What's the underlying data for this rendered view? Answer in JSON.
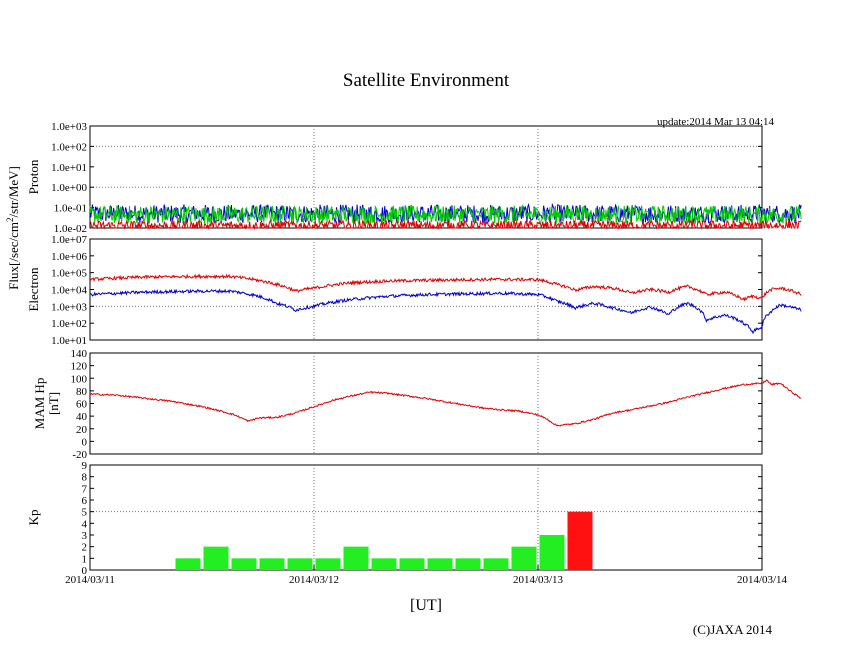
{
  "title": "Satellite Environment",
  "update": "update:2014 Mar 13 04:14",
  "copyright": "(C)JAXA 2014",
  "chart_data": {
    "type": "line",
    "x_axis": {
      "label": "[UT]",
      "range": [
        "2014/03/11 00:00",
        "2014/03/14 00:00"
      ],
      "ticks": [
        "2014/03/11",
        "2014/03/12",
        "2014/03/13",
        "2014/03/14"
      ],
      "vertical_grid": [
        "2014/03/12",
        "2014/03/13"
      ]
    },
    "shared_flux_label": {
      "prefix": "Flux[/sec/cm",
      "sup": "2",
      "suffix": "/str/MeV]"
    },
    "panels": [
      {
        "id": "proton",
        "ylabel": "Proton",
        "scale": "log",
        "ylim": [
          0.01,
          1000
        ],
        "ticks": [
          "1.0e-02",
          "1.0e-01",
          "1.0e+00",
          "1.0e+01",
          "1.0e+02",
          "1.0e+03"
        ],
        "grid_values": [
          1,
          100
        ],
        "series_colors": [
          "#e00000",
          "#00cc00",
          "#0000d0"
        ],
        "series": [
          {
            "color": "#0000d0",
            "t": [
              0,
              6,
              12,
              18,
              24,
              30,
              36,
              42,
              48,
              54,
              60,
              66,
              72,
              76.2
            ],
            "v": [
              0.05,
              0.05,
              0.05,
              0.05,
              0.05,
              0.05,
              0.05,
              0.05,
              0.05,
              0.05,
              0.05,
              0.05,
              0.05,
              0.05
            ]
          },
          {
            "color": "#00cc00",
            "t": [
              0,
              6,
              12,
              18,
              24,
              30,
              36,
              42,
              48,
              54,
              60,
              66,
              72,
              76.2
            ],
            "v": [
              0.045,
              0.045,
              0.045,
              0.045,
              0.045,
              0.045,
              0.045,
              0.045,
              0.045,
              0.045,
              0.045,
              0.045,
              0.045,
              0.045
            ]
          },
          {
            "color": "#e00000",
            "t": [
              0,
              6,
              12,
              18,
              24,
              30,
              36,
              42,
              48,
              54,
              60,
              66,
              72,
              76.2
            ],
            "v": [
              0.013,
              0.013,
              0.013,
              0.013,
              0.013,
              0.013,
              0.013,
              0.013,
              0.013,
              0.013,
              0.013,
              0.013,
              0.013,
              0.013
            ]
          }
        ]
      },
      {
        "id": "electron",
        "ylabel": "Electron",
        "scale": "log",
        "ylim": [
          10,
          10000000
        ],
        "ticks": [
          "1.0e+01",
          "1.0e+02",
          "1.0e+03",
          "1.0e+04",
          "1.0e+05",
          "1.0e+06",
          "1.0e+07"
        ],
        "grid_values": [
          1000
        ],
        "series": [
          {
            "color": "#e00000",
            "t": [
              0,
              6,
              12,
              15,
              18,
              20,
              22,
              24,
              28,
              32,
              36,
              40,
              44,
              48,
              50,
              52,
              54,
              56,
              58,
              60,
              62,
              64,
              66,
              68,
              70,
              71,
              72,
              73,
              74,
              76.2
            ],
            "v": [
              40000,
              55000,
              60000,
              60000,
              35000,
              20000,
              8000,
              12000,
              25000,
              32000,
              35000,
              38000,
              40000,
              38000,
              20000,
              9000,
              15000,
              12000,
              6000,
              10000,
              7000,
              15000,
              5000,
              7000,
              2500,
              4000,
              3000,
              10000,
              12000,
              5000
            ]
          },
          {
            "color": "#0000d0",
            "t": [
              0,
              6,
              12,
              15,
              18,
              20,
              22,
              24,
              28,
              32,
              36,
              40,
              44,
              48,
              50,
              52,
              54,
              56,
              58,
              60,
              62,
              64,
              66,
              68,
              70,
              71,
              72,
              73,
              74,
              76.2
            ],
            "v": [
              5000,
              7000,
              8000,
              8000,
              4000,
              1500,
              600,
              1000,
              2500,
              4000,
              5000,
              5500,
              6000,
              5000,
              2000,
              800,
              1500,
              800,
              400,
              900,
              300,
              1500,
              150,
              300,
              100,
              30,
              60,
              500,
              1200,
              600
            ]
          }
        ]
      },
      {
        "id": "mam",
        "ylabel_lines": [
          "MAM Hp",
          "[nT]"
        ],
        "scale": "linear",
        "ylim": [
          -20,
          140
        ],
        "ticks": [
          "-20",
          "0",
          "20",
          "40",
          "60",
          "80",
          "100",
          "120",
          "140"
        ],
        "grid_values": [],
        "series": [
          {
            "color": "#e00000",
            "t": [
              0,
              3,
              6,
              9,
              12,
              14,
              15.5,
              17,
              18,
              20,
              22,
              24,
              26,
              28,
              30,
              32,
              34,
              36,
              38,
              40,
              42,
              44,
              46,
              48,
              49,
              50,
              52,
              54,
              56,
              58,
              60,
              62,
              64,
              66,
              68,
              70,
              72,
              72.5,
              73,
              74,
              75,
              76.2
            ],
            "v": [
              75,
              73,
              68,
              63,
              55,
              48,
              42,
              32,
              37,
              38,
              45,
              55,
              65,
              72,
              78,
              76,
              72,
              68,
              63,
              58,
              53,
              50,
              48,
              42,
              35,
              25,
              28,
              35,
              45,
              50,
              56,
              62,
              70,
              77,
              84,
              90,
              92,
              97,
              90,
              92,
              80,
              68
            ]
          }
        ]
      },
      {
        "id": "kp",
        "ylabel": "Kp",
        "scale": "linear",
        "ylim": [
          0,
          9
        ],
        "ticks": [
          "0",
          "1",
          "2",
          "3",
          "4",
          "5",
          "6",
          "7",
          "8",
          "9"
        ],
        "grid_values": [
          5
        ],
        "bars": {
          "bin_hours": 3,
          "start_hours": [
            9,
            12,
            15,
            18,
            21,
            24,
            27,
            30,
            33,
            36,
            39,
            42,
            45,
            48,
            51,
            54
          ],
          "values": [
            1,
            2,
            1,
            1,
            1,
            1,
            2,
            1,
            1,
            1,
            1,
            1,
            2,
            3,
            5,
            0
          ],
          "colors": {
            "normal": "#22ee22",
            "storm": "#ff1111"
          },
          "storm_threshold": 5
        }
      }
    ]
  }
}
